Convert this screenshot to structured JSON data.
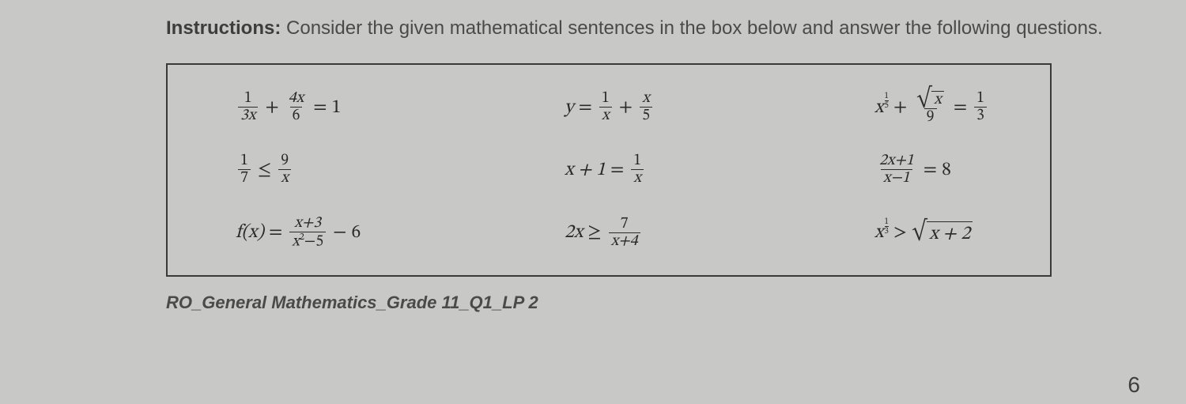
{
  "instructions": {
    "label": "Instructions:",
    "text": " Consider the given mathematical sentences in the box below and answer the following questions."
  },
  "box": {
    "r1c1": {
      "f1n": "1",
      "f1d": "3x",
      "f2n": "4x",
      "f2d": "6",
      "rhs": "1"
    },
    "r1c2": {
      "lhs": "y",
      "f1n": "1",
      "f1d": "x",
      "f2n": "x",
      "f2d": "5"
    },
    "r1c3": {
      "base": "x",
      "expn": "1",
      "expd": "5",
      "f1_rad": "x",
      "f1d": "9",
      "rhsn": "1",
      "rhsd": "3"
    },
    "r2c1": {
      "f1n": "1",
      "f1d": "7",
      "f2n": "9",
      "f2d": "x"
    },
    "r2c2": {
      "lhs": "x + 1",
      "f1n": "1",
      "f1d": "x"
    },
    "r2c3": {
      "f1n": "2x+1",
      "f1d": "x−1",
      "rhs": "8"
    },
    "r3c1": {
      "fn": "f(x)",
      "f1n": "x+3",
      "f1d_a": "x",
      "f1d_b": "−5",
      "tail": "6"
    },
    "r3c2": {
      "lhs": "2x",
      "f1n": "7",
      "f1d": "x+4"
    },
    "r3c3": {
      "base": "x",
      "expn": "1",
      "expd": "3",
      "rad": "x + 2"
    }
  },
  "footer": "RO_General Mathematics_Grade 11_Q1_LP 2",
  "page": "6"
}
